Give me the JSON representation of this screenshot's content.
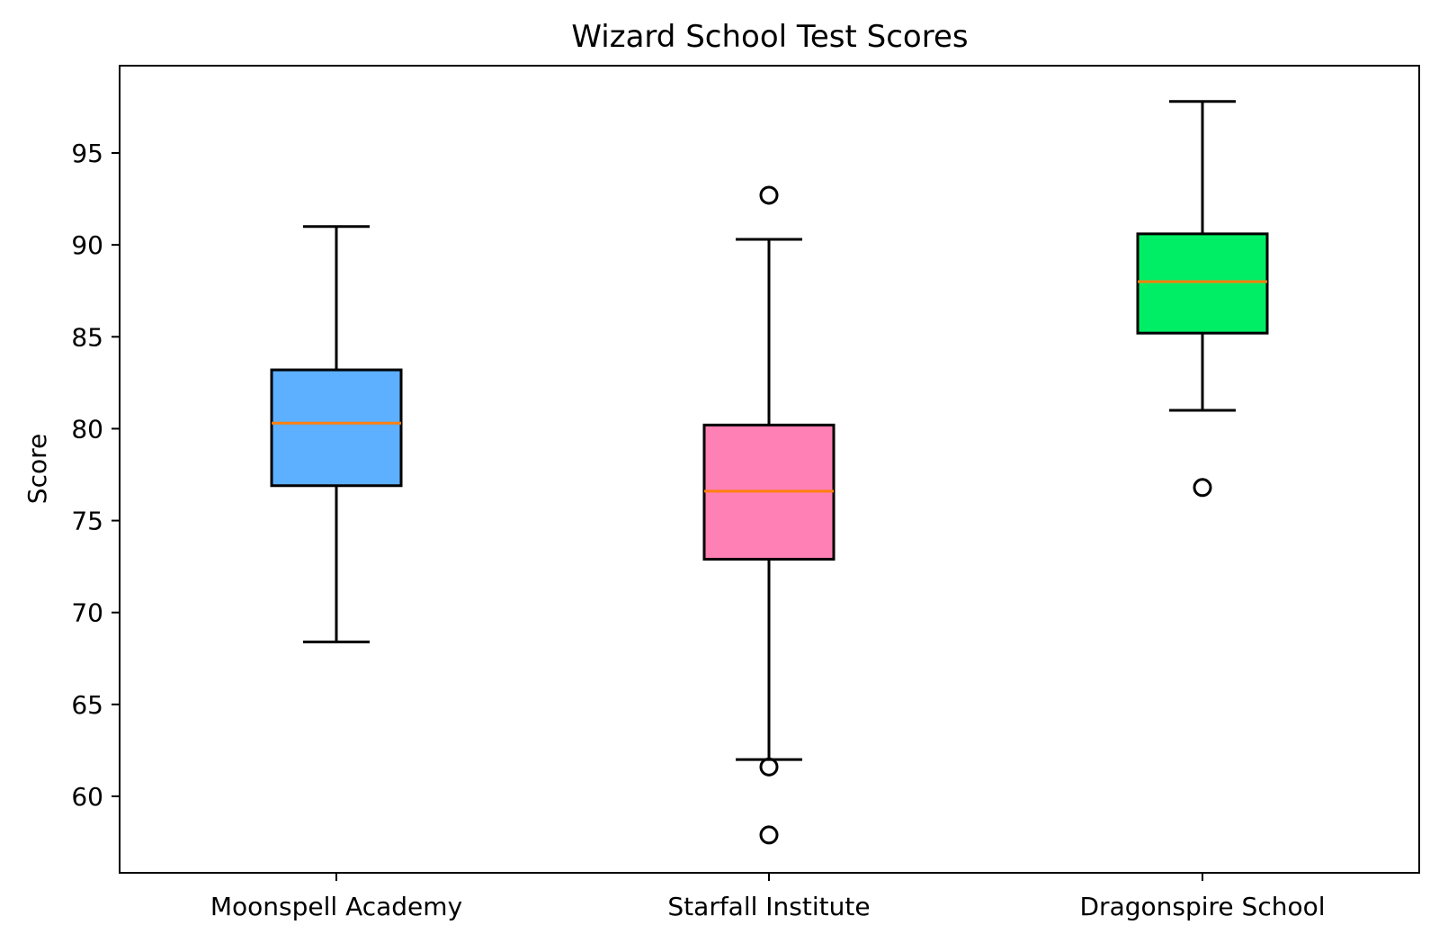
{
  "chart_data": {
    "type": "boxplot",
    "title": "Wizard School Test Scores",
    "xlabel": "",
    "ylabel": "Score",
    "ylim": [
      55.8,
      99.7
    ],
    "yticks": [
      60,
      65,
      70,
      75,
      80,
      85,
      90,
      95
    ],
    "grid": false,
    "legend": null,
    "categories": [
      "Moonspell Academy",
      "Starfall Institute",
      "Dragonspire School"
    ],
    "series": [
      {
        "name": "Moonspell Academy",
        "color": "#5cb0ff",
        "whisker_low": 68.4,
        "q1": 76.9,
        "median": 80.3,
        "q3": 83.2,
        "whisker_high": 91.0,
        "outliers": []
      },
      {
        "name": "Starfall Institute",
        "color": "#ff80b4",
        "whisker_low": 62.0,
        "q1": 72.9,
        "median": 76.6,
        "q3": 80.2,
        "whisker_high": 90.3,
        "outliers": [
          92.7,
          61.6,
          57.9
        ]
      },
      {
        "name": "Dragonspire School",
        "color": "#00ee66",
        "whisker_low": 81.0,
        "q1": 85.2,
        "median": 88.0,
        "q3": 90.6,
        "whisker_high": 97.8,
        "outliers": [
          76.8
        ]
      }
    ],
    "median_color": "#ff7f0e"
  }
}
